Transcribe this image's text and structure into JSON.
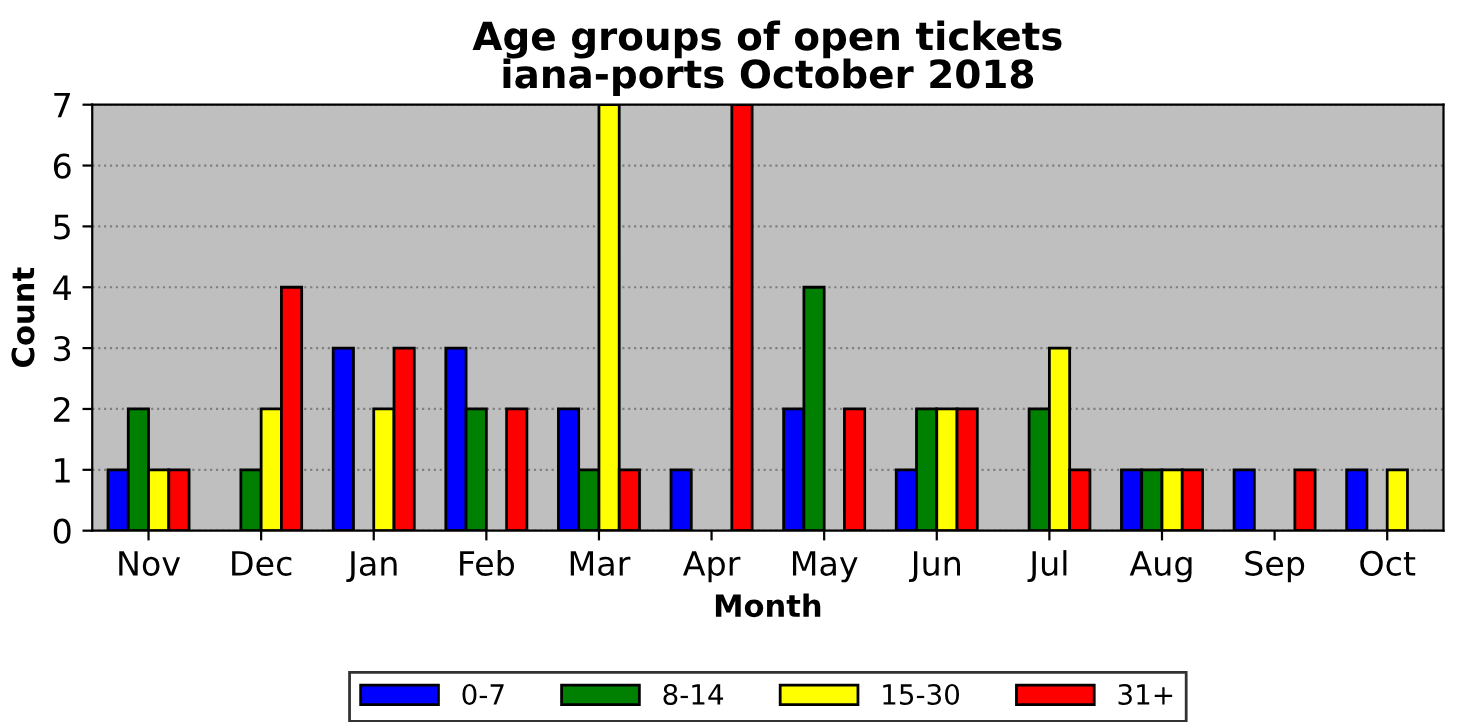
{
  "chart_data": {
    "type": "bar",
    "title": "Age groups of open tickets\niana-ports October 2018",
    "xlabel": "Month",
    "ylabel": "Count",
    "categories": [
      "Nov",
      "Dec",
      "Jan",
      "Feb",
      "Mar",
      "Apr",
      "May",
      "Jun",
      "Jul",
      "Aug",
      "Sep",
      "Oct"
    ],
    "series": [
      {
        "name": "0-7",
        "color": "#0000ff",
        "values": [
          1,
          0,
          3,
          3,
          2,
          1,
          2,
          1,
          0,
          1,
          1,
          1
        ]
      },
      {
        "name": "8-14",
        "color": "#008000",
        "values": [
          2,
          1,
          0,
          2,
          1,
          0,
          4,
          2,
          2,
          1,
          0,
          0
        ]
      },
      {
        "name": "15-30",
        "color": "#ffff00",
        "values": [
          1,
          2,
          2,
          0,
          7,
          0,
          0,
          2,
          3,
          1,
          0,
          1
        ]
      },
      {
        "name": "31+",
        "color": "#ff0000",
        "values": [
          1,
          4,
          3,
          2,
          1,
          7,
          2,
          2,
          1,
          1,
          1,
          0
        ]
      }
    ],
    "ylim": [
      0,
      7
    ],
    "yticks": [
      0,
      1,
      2,
      3,
      4,
      5,
      6,
      7
    ],
    "grid": "y",
    "legend": "bottom"
  }
}
